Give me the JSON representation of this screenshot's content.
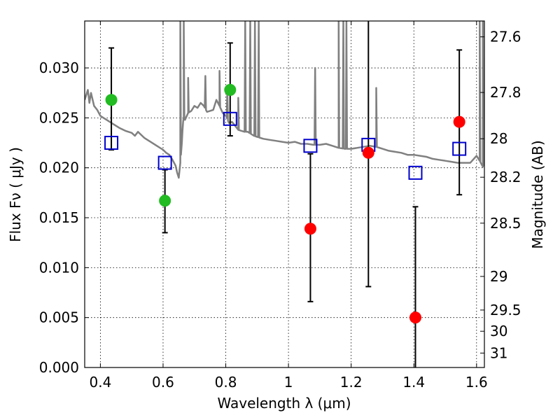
{
  "chart_data": {
    "type": "scatter",
    "xlabel": "Wavelength  λ (μm)",
    "ylabel": "Flux  Fν  ( μJy )",
    "ylabel_right": "Magnitude (AB)",
    "xlim": [
      0.35,
      1.625
    ],
    "ylim": [
      0.0,
      0.0347
    ],
    "grid": true,
    "x_ticks": [
      {
        "value": 0.4,
        "label": "0.4"
      },
      {
        "value": 0.6,
        "label": "0.6"
      },
      {
        "value": 0.8,
        "label": "0.8"
      },
      {
        "value": 1.0,
        "label": "1"
      },
      {
        "value": 1.2,
        "label": "1.2"
      },
      {
        "value": 1.4,
        "label": "1.4"
      },
      {
        "value": 1.6,
        "label": "1.6"
      }
    ],
    "y_ticks": [
      {
        "value": 0.0,
        "label": "0.000"
      },
      {
        "value": 0.005,
        "label": "0.005"
      },
      {
        "value": 0.01,
        "label": "0.010"
      },
      {
        "value": 0.015,
        "label": "0.015"
      },
      {
        "value": 0.02,
        "label": "0.020"
      },
      {
        "value": 0.025,
        "label": "0.025"
      },
      {
        "value": 0.03,
        "label": "0.030"
      }
    ],
    "right_ticks": [
      {
        "mag": 27.6,
        "label": "27.6"
      },
      {
        "mag": 27.8,
        "label": "27.8"
      },
      {
        "mag": 28.0,
        "label": "28"
      },
      {
        "mag": 28.2,
        "label": "28.2"
      },
      {
        "mag": 28.5,
        "label": "28.5"
      },
      {
        "mag": 29.0,
        "label": "29"
      },
      {
        "mag": 29.5,
        "label": "29.5"
      },
      {
        "mag": 30.0,
        "label": "30"
      },
      {
        "mag": 31.0,
        "label": "31"
      }
    ],
    "series": [
      {
        "kind": "model-spectrum",
        "color": "#808080",
        "x": [
          0.35,
          0.36,
          0.365,
          0.37,
          0.38,
          0.39,
          0.4,
          0.41,
          0.42,
          0.44,
          0.46,
          0.48,
          0.5,
          0.51,
          0.52,
          0.54,
          0.55,
          0.56,
          0.58,
          0.6,
          0.61,
          0.62,
          0.63,
          0.64,
          0.645,
          0.65,
          0.655,
          0.66,
          0.662,
          0.664,
          0.666,
          0.67,
          0.68,
          0.69,
          0.7,
          0.71,
          0.72,
          0.73,
          0.74,
          0.75,
          0.76,
          0.77,
          0.78,
          0.79,
          0.8,
          0.81,
          0.82,
          0.83,
          0.84,
          0.85,
          0.86,
          0.87,
          0.88,
          0.89,
          0.9,
          0.92,
          0.94,
          0.96,
          0.98,
          1.0,
          1.02,
          1.04,
          1.06,
          1.08,
          1.1,
          1.12,
          1.14,
          1.16,
          1.18,
          1.2,
          1.22,
          1.24,
          1.26,
          1.28,
          1.3,
          1.32,
          1.34,
          1.36,
          1.38,
          1.4,
          1.42,
          1.44,
          1.46,
          1.48,
          1.5,
          1.52,
          1.54,
          1.56,
          1.58,
          1.6,
          1.61,
          1.62,
          1.625
        ],
        "y": [
          0.0268,
          0.0278,
          0.0265,
          0.0275,
          0.0262,
          0.0258,
          0.0252,
          0.025,
          0.0248,
          0.0244,
          0.024,
          0.0237,
          0.0235,
          0.0232,
          0.0236,
          0.023,
          0.0228,
          0.0226,
          0.0222,
          0.0218,
          0.0215,
          0.0213,
          0.0208,
          0.0202,
          0.0195,
          0.019,
          0.0205,
          0.0225,
          0.0237,
          0.0246,
          0.0251,
          0.0248,
          0.0255,
          0.0257,
          0.0262,
          0.026,
          0.0265,
          0.0262,
          0.0256,
          0.0257,
          0.0258,
          0.0268,
          0.0262,
          0.0255,
          0.0252,
          0.0245,
          0.0246,
          0.0242,
          0.0238,
          0.0237,
          0.0236,
          0.0236,
          0.0234,
          0.0232,
          0.0231,
          0.0229,
          0.0228,
          0.0227,
          0.0226,
          0.0225,
          0.0226,
          0.0224,
          0.0224,
          0.0223,
          0.0223,
          0.0224,
          0.0222,
          0.022,
          0.0219,
          0.0219,
          0.022,
          0.0221,
          0.0222,
          0.0221,
          0.0219,
          0.0217,
          0.0216,
          0.0215,
          0.0213,
          0.0213,
          0.0212,
          0.0211,
          0.0209,
          0.0208,
          0.0207,
          0.0206,
          0.0205,
          0.0205,
          0.0205,
          0.0212,
          0.0207,
          0.0201,
          0.0205
        ],
        "spikes": [
          {
            "x": 0.655,
            "y": 0.0347
          },
          {
            "x": 0.666,
            "y": 0.0347
          },
          {
            "x": 0.68,
            "y": 0.029
          },
          {
            "x": 0.735,
            "y": 0.0292
          },
          {
            "x": 0.78,
            "y": 0.0297
          },
          {
            "x": 0.805,
            "y": 0.028
          },
          {
            "x": 0.84,
            "y": 0.027
          },
          {
            "x": 0.862,
            "y": 0.0347
          },
          {
            "x": 0.878,
            "y": 0.0347
          },
          {
            "x": 0.893,
            "y": 0.0347
          },
          {
            "x": 0.905,
            "y": 0.0347
          },
          {
            "x": 1.085,
            "y": 0.03
          },
          {
            "x": 1.16,
            "y": 0.0347
          },
          {
            "x": 1.175,
            "y": 0.0347
          },
          {
            "x": 1.185,
            "y": 0.0347
          },
          {
            "x": 1.28,
            "y": 0.028
          },
          {
            "x": 1.61,
            "y": 0.0347
          },
          {
            "x": 1.62,
            "y": 0.0347
          }
        ]
      },
      {
        "kind": "model-fluxes",
        "color": "#0000cc",
        "x": [
          0.435,
          0.606,
          0.814,
          1.07,
          1.255,
          1.405,
          1.545
        ],
        "y": [
          0.0225,
          0.0205,
          0.0249,
          0.0222,
          0.0223,
          0.0195,
          0.0219
        ]
      },
      {
        "kind": "detections",
        "color": "#22bb22",
        "x": [
          0.435,
          0.606,
          0.814
        ],
        "y": [
          0.0268,
          0.0167,
          0.0278
        ],
        "yerr_low": [
          0.0218,
          0.0135,
          0.0232
        ],
        "yerr_high": [
          0.032,
          0.0198,
          0.0325
        ]
      },
      {
        "kind": "non-detections",
        "color": "#ff0000",
        "x": [
          1.07,
          1.255,
          1.405,
          1.545
        ],
        "y": [
          0.0139,
          0.0215,
          0.005,
          0.0246
        ],
        "yerr_low": [
          0.0066,
          0.0081,
          0.0,
          0.0173
        ],
        "yerr_high": [
          0.0214,
          0.0347,
          0.0161,
          0.0318
        ]
      }
    ]
  }
}
